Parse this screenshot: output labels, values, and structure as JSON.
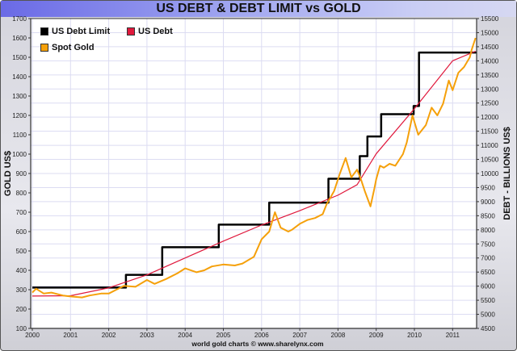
{
  "chart_data": {
    "type": "line",
    "title": "US DEBT & DEBT LIMIT vs GOLD",
    "ylabel_left": "GOLD US$",
    "ylabel_right": "DEBT - BILLIONS US$",
    "credit": "world gold charts © www.sharelynx.com",
    "xlim": [
      2000,
      2011.63
    ],
    "ylim_left": [
      100,
      1700
    ],
    "ylim_right": [
      4500,
      15500
    ],
    "x_ticks": [
      "2000",
      "2001",
      "2002",
      "2003",
      "2004",
      "2005",
      "2006",
      "2007",
      "2008",
      "2009",
      "2010",
      "2011"
    ],
    "y_ticks_left": [
      100,
      200,
      300,
      400,
      500,
      600,
      700,
      800,
      900,
      1000,
      1100,
      1200,
      1300,
      1400,
      1500,
      1600,
      1700
    ],
    "y_ticks_right": [
      4500,
      5000,
      5500,
      6000,
      6500,
      7000,
      7500,
      8000,
      8500,
      9000,
      9500,
      10000,
      10500,
      11000,
      11500,
      12000,
      12500,
      13000,
      13500,
      14000,
      14500,
      15000,
      15500
    ],
    "grid": true,
    "legend_position": "top-left",
    "series": [
      {
        "name": "US Debt Limit",
        "axis": "right",
        "color": "#000000",
        "step": true,
        "x": [
          2000,
          2002.45,
          2003.4,
          2004.88,
          2006.2,
          2007.75,
          2008.57,
          2008.77,
          2009.13,
          2009.98,
          2010.12,
          2011.63
        ],
        "y": [
          5950,
          6400,
          7384,
          8184,
          8965,
          9815,
          10615,
          11315,
          12104,
          12394,
          14294,
          14294
        ]
      },
      {
        "name": "US Debt",
        "axis": "right",
        "color": "#e0183c",
        "x": [
          2000,
          2001,
          2002,
          2003,
          2004,
          2005,
          2006,
          2007,
          2008,
          2008.5,
          2009,
          2010,
          2011,
          2011.6
        ],
        "y": [
          5650,
          5660,
          5940,
          6400,
          7000,
          7600,
          8170,
          8680,
          9230,
          9600,
          10700,
          12300,
          14000,
          14340
        ]
      },
      {
        "name": "Spot Gold",
        "axis": "left",
        "color": "#f5a00a",
        "x": [
          2000,
          2000.1,
          2000.3,
          2000.5,
          2000.8,
          2001,
          2001.3,
          2001.5,
          2001.8,
          2002,
          2002.2,
          2002.4,
          2002.7,
          2003,
          2003.2,
          2003.5,
          2003.8,
          2004,
          2004.3,
          2004.5,
          2004.7,
          2005,
          2005.3,
          2005.5,
          2005.8,
          2006,
          2006.2,
          2006.35,
          2006.5,
          2006.7,
          2006.8,
          2007,
          2007.2,
          2007.4,
          2007.6,
          2007.7,
          2007.9,
          2008.05,
          2008.2,
          2008.35,
          2008.5,
          2008.6,
          2008.7,
          2008.85,
          2008.95,
          2009.0,
          2009.1,
          2009.2,
          2009.35,
          2009.5,
          2009.7,
          2009.8,
          2009.95,
          2010.1,
          2010.3,
          2010.45,
          2010.6,
          2010.75,
          2010.9,
          2011.0,
          2011.15,
          2011.3,
          2011.45,
          2011.5,
          2011.6
        ],
        "y": [
          285,
          305,
          280,
          285,
          270,
          265,
          260,
          270,
          280,
          280,
          300,
          320,
          315,
          350,
          330,
          355,
          385,
          410,
          390,
          400,
          420,
          430,
          425,
          435,
          470,
          560,
          600,
          700,
          620,
          600,
          610,
          640,
          660,
          670,
          690,
          740,
          810,
          900,
          980,
          880,
          920,
          870,
          810,
          730,
          820,
          870,
          940,
          930,
          950,
          940,
          1000,
          1060,
          1200,
          1100,
          1150,
          1240,
          1200,
          1260,
          1380,
          1330,
          1420,
          1450,
          1500,
          1540,
          1600
        ]
      }
    ]
  }
}
